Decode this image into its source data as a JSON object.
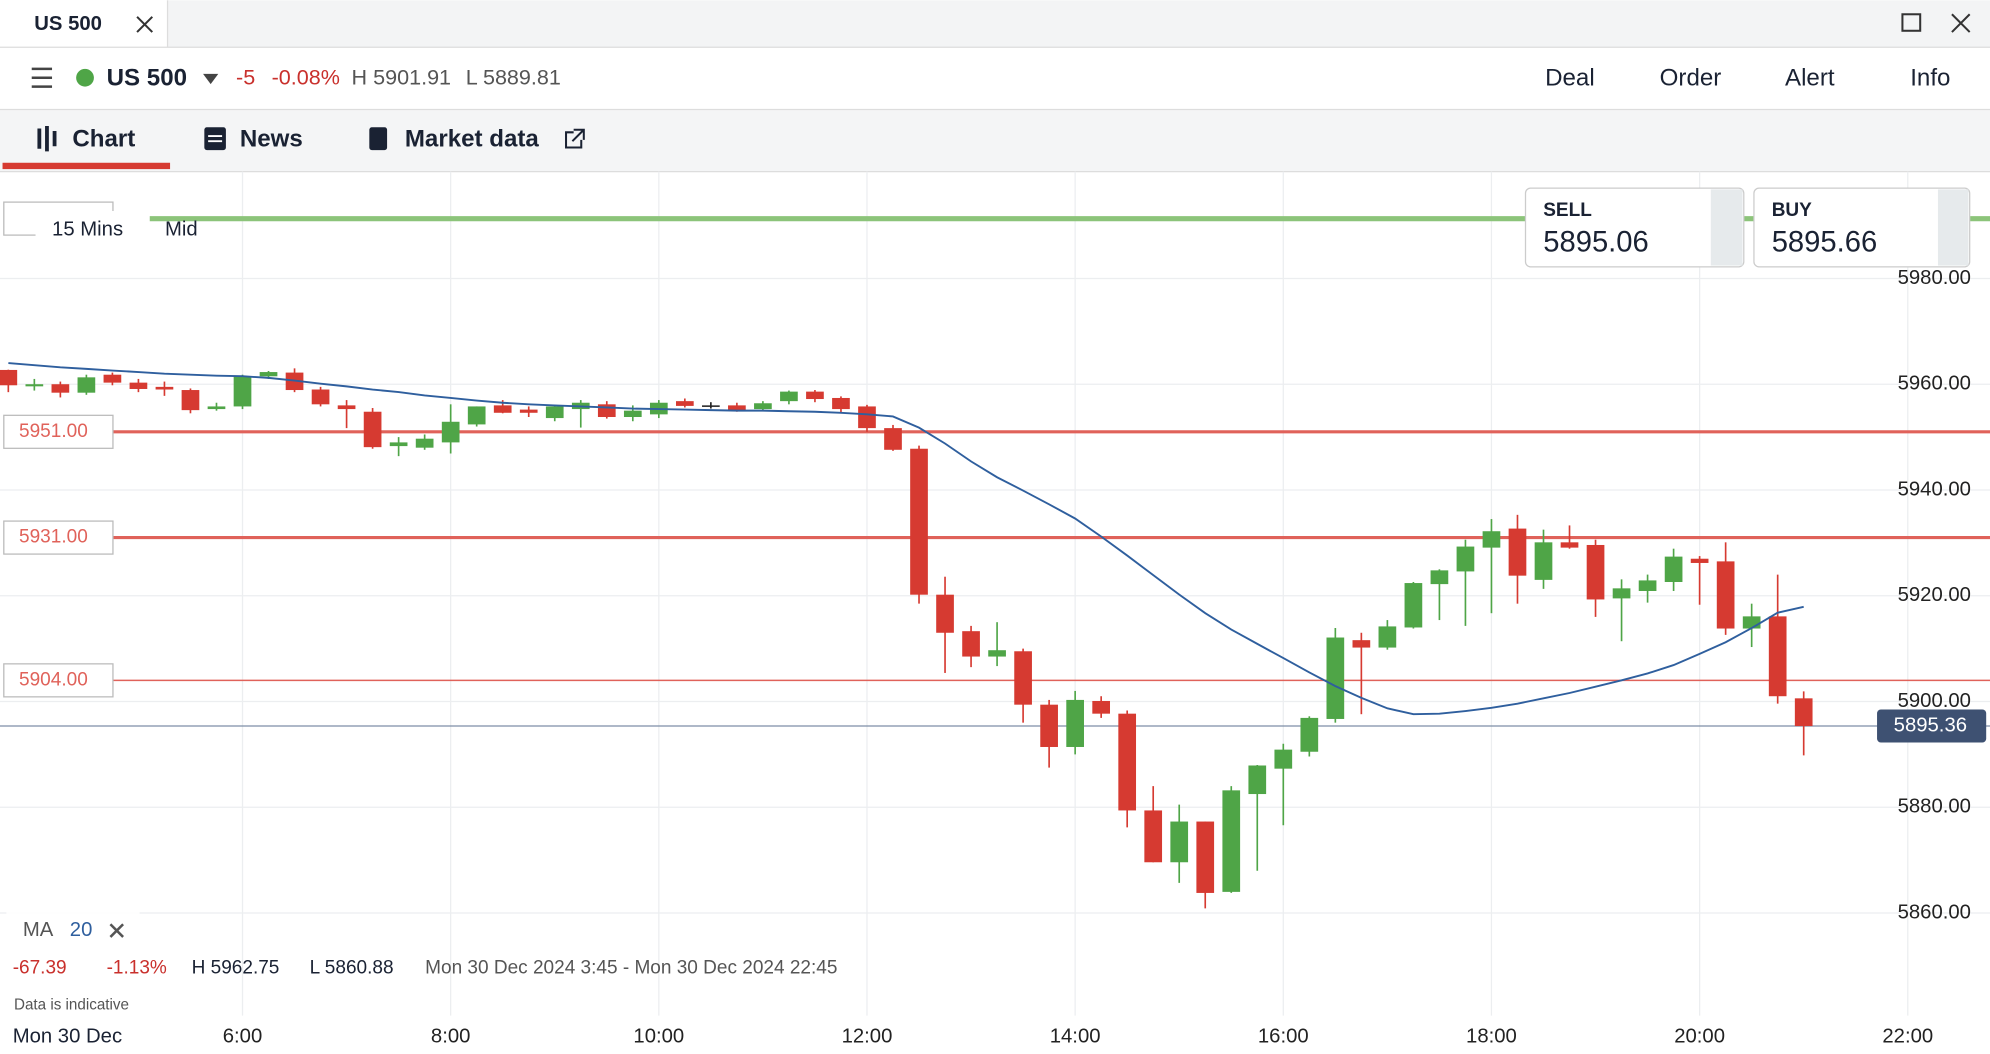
{
  "ui": {
    "tab": "US 500",
    "instrument": "US 500",
    "change": "-5",
    "change_pct": "-0.08%",
    "high": "H 5901.91",
    "low": "L 5889.81",
    "actions": [
      "Deal",
      "Order",
      "Alert",
      "Info"
    ],
    "tabs": [
      "Chart",
      "News",
      "Market data"
    ],
    "interval": "15 Mins",
    "price_type": "Mid",
    "sell_label": "SELL",
    "sell_price": "5895.06",
    "buy_label": "BUY",
    "buy_price": "5895.66",
    "stats": [
      "-67.39",
      "-1.13%",
      "H 5962.75",
      "L 5860.88"
    ],
    "range": "Mon 30 Dec 2024 3:45 - Mon 30 Dec 2024 22:45",
    "note": "Data is indicative",
    "date": "Mon 30 Dec"
  },
  "chart_data": {
    "type": "candlestick",
    "up_color": "#4fa547",
    "down_color": "#d63a31",
    "grid": true,
    "x": [
      3.75,
      4,
      4.25,
      4.5,
      4.75,
      5,
      5.25,
      5.5,
      5.75,
      6,
      6.25,
      6.5,
      6.75,
      7,
      7.25,
      7.5,
      7.75,
      8,
      8.25,
      8.5,
      8.75,
      9,
      9.25,
      9.5,
      9.75,
      10,
      10.25,
      10.5,
      10.75,
      11,
      11.25,
      11.5,
      11.75,
      12,
      12.25,
      12.5,
      12.75,
      13,
      13.25,
      13.5,
      13.75,
      14,
      14.25,
      14.5,
      14.75,
      15,
      15.25,
      15.5,
      15.75,
      16,
      16.25,
      16.5,
      16.75,
      17,
      17.25,
      17.5,
      17.75,
      18,
      18.25,
      18.5,
      18.75,
      19,
      19.25,
      19.5,
      19.75,
      20,
      20.25,
      20.5,
      20.75,
      21
    ],
    "open": [
      5962.7,
      5959.6,
      5960,
      5958.4,
      5961.8,
      5960.3,
      5959.5,
      5958.9,
      5955.3,
      5955.8,
      5961.5,
      5962.2,
      5959,
      5956,
      5954.8,
      5948.3,
      5948,
      5949,
      5952.4,
      5956,
      5955.2,
      5953.6,
      5955.3,
      5956.2,
      5953.8,
      5954.3,
      5956.8,
      5956,
      5956,
      5955.3,
      5956.8,
      5958.6,
      5957.4,
      5955.8,
      5951.7,
      5947.8,
      5920.2,
      5913.3,
      5908.5,
      5909.5,
      5899.4,
      5891.4,
      5900.1,
      5897.7,
      5879.4,
      5869.6,
      5877.3,
      5864,
      5882.5,
      5887.3,
      5890.5,
      5896.7,
      5911.6,
      5910.2,
      5914,
      5922.2,
      5924.6,
      5929.1,
      5932.7,
      5923,
      5930.1,
      5929.6,
      5919.5,
      5920.9,
      5922.6,
      5927,
      5926.5,
      5913.8,
      5916.1,
      5900.6
    ],
    "high": [
      5962.75,
      5961,
      5960.5,
      5961.8,
      5962.2,
      5961,
      5960.5,
      5959.2,
      5956.5,
      5961.8,
      5962.5,
      5963,
      5959.5,
      5957,
      5955.5,
      5950,
      5950.5,
      5956.2,
      5955.8,
      5957,
      5955.8,
      5956,
      5957,
      5956.8,
      5956,
      5957,
      5957.3,
      5956.6,
      5956.5,
      5956.8,
      5958.8,
      5958.9,
      5957.7,
      5956.1,
      5952.3,
      5948.4,
      5923.6,
      5914.3,
      5915,
      5910,
      5900.3,
      5902,
      5901,
      5898.3,
      5884,
      5880.5,
      5877.3,
      5884,
      5888,
      5892,
      5897.2,
      5913.9,
      5913,
      5915.4,
      5922.6,
      5925,
      5930.6,
      5934.5,
      5935.3,
      5932.5,
      5933.3,
      5930.6,
      5923.1,
      5924,
      5928.9,
      5927.5,
      5930.1,
      5918.5,
      5924,
      5901.91
    ],
    "low": [
      5958.5,
      5958.8,
      5957.5,
      5958,
      5959.8,
      5958.5,
      5957.8,
      5954.5,
      5955,
      5955.3,
      5961,
      5958.5,
      5955.8,
      5951.7,
      5947.8,
      5946.4,
      5947.6,
      5946.9,
      5952,
      5954.5,
      5953.8,
      5953,
      5951.8,
      5953.5,
      5953,
      5953.6,
      5955.6,
      5955.4,
      5954.8,
      5954.9,
      5956.2,
      5956.6,
      5954.6,
      5951,
      5947.4,
      5918.5,
      5905.4,
      5906.5,
      5906.7,
      5896,
      5887.5,
      5890,
      5896.9,
      5876.2,
      5869.6,
      5865.7,
      5860.88,
      5863.8,
      5868,
      5876.6,
      5889.6,
      5896,
      5897.6,
      5909.8,
      5913.8,
      5915.4,
      5914.3,
      5916.7,
      5918.5,
      5921.3,
      5928.9,
      5916,
      5911.4,
      5918.7,
      5920.9,
      5918.3,
      5912.6,
      5910.3,
      5899.6,
      5889.81
    ],
    "close": [
      5959.8,
      5960,
      5958.4,
      5961.3,
      5960.3,
      5959.1,
      5959,
      5955.1,
      5955.8,
      5961.5,
      5962.3,
      5958.9,
      5956.2,
      5955.3,
      5948.1,
      5949,
      5949.7,
      5952.9,
      5955.8,
      5954.6,
      5954.6,
      5955.8,
      5956.5,
      5953.8,
      5955,
      5956.5,
      5955.9,
      5956,
      5955.1,
      5956.4,
      5958.6,
      5957.2,
      5955.3,
      5951.7,
      5947.6,
      5920.2,
      5913,
      5908.5,
      5909.7,
      5899.4,
      5891.4,
      5900.3,
      5897.7,
      5879.4,
      5869.6,
      5877.3,
      5863.8,
      5883.2,
      5887.9,
      5890.9,
      5896.9,
      5912.1,
      5910.2,
      5914.2,
      5922.4,
      5924.8,
      5929.3,
      5932.2,
      5923.8,
      5930.1,
      5929.1,
      5919.3,
      5921.4,
      5922.9,
      5927.4,
      5926.2,
      5913.8,
      5916.1,
      5901,
      5895.36
    ],
    "ma": {
      "name": "MA",
      "period": 20,
      "color": "#2f5f9e",
      "values": [
        5964,
        5963.6,
        5963.2,
        5962.9,
        5962.6,
        5962.3,
        5962,
        5961.8,
        5961.6,
        5961.5,
        5961.2,
        5960.7,
        5960.1,
        5959.6,
        5959,
        5958.5,
        5957.9,
        5957.4,
        5956.9,
        5956.5,
        5956.2,
        5956,
        5955.8,
        5955.6,
        5955.4,
        5955.3,
        5955.2,
        5955.1,
        5955,
        5955,
        5954.9,
        5954.8,
        5954.6,
        5954.3,
        5953.9,
        5951.8,
        5948.8,
        5945.4,
        5942.4,
        5939.9,
        5937.3,
        5934.6,
        5931.2,
        5927.6,
        5923.9,
        5920.2,
        5916.7,
        5913.6,
        5910.9,
        5908.2,
        5905.5,
        5902.9,
        5900.7,
        5898.7,
        5897.6,
        5897.7,
        5898.2,
        5898.8,
        5899.6,
        5900.6,
        5901.6,
        5902.8,
        5904,
        5905.3,
        5906.9,
        5909,
        5911.2,
        5913.9,
        5916.8,
        5917.9
      ]
    },
    "levels": [
      {
        "value": 5951,
        "label": "5951.00"
      },
      {
        "value": 5931,
        "label": "5931.00"
      },
      {
        "value": 5904,
        "label": "5904.00"
      }
    ],
    "level_color": "#e0625a",
    "alert_level": 5991.3,
    "alert_color": "#8cc47a",
    "last_price": {
      "value": 5895.36,
      "label": "5895.36"
    },
    "xlim": [
      3.67,
      22.79
    ],
    "ylim": [
      5840.6,
      6000.2
    ],
    "xticks": [
      {
        "value": 6,
        "label": "6:00"
      },
      {
        "value": 8,
        "label": "8:00"
      },
      {
        "value": 10,
        "label": "10:00"
      },
      {
        "value": 12,
        "label": "12:00"
      },
      {
        "value": 14,
        "label": "14:00"
      },
      {
        "value": 16,
        "label": "16:00"
      },
      {
        "value": 18,
        "label": "18:00"
      },
      {
        "value": 20,
        "label": "20:00"
      },
      {
        "value": 22,
        "label": "22:00"
      }
    ],
    "yticks": [
      {
        "value": 5860,
        "label": "5860.00"
      },
      {
        "value": 5880,
        "label": "5880.00"
      },
      {
        "value": 5900,
        "label": "5900.00"
      },
      {
        "value": 5920,
        "label": "5920.00"
      },
      {
        "value": 5940,
        "label": "5940.00"
      },
      {
        "value": 5960,
        "label": "5960.00"
      },
      {
        "value": 5980,
        "label": "5980.00"
      }
    ]
  }
}
